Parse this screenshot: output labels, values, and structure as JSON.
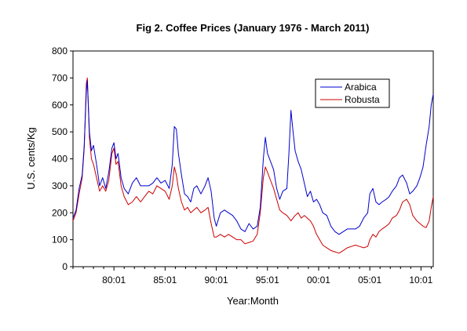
{
  "chart_data": {
    "type": "line",
    "title": "Fig 2. Coffee Prices (January 1976 - March 2011)",
    "xlabel": "Year:Month",
    "ylabel": "U.S. cents/Kg",
    "x_unit": "year",
    "xlim": [
      1976.0,
      2011.2
    ],
    "ylim": [
      0,
      800
    ],
    "yticks": [
      0,
      100,
      200,
      300,
      400,
      500,
      600,
      700,
      800
    ],
    "xticks": [
      {
        "value": 1980.0,
        "label": "80:01"
      },
      {
        "value": 1985.0,
        "label": "85:01"
      },
      {
        "value": 1990.0,
        "label": "90:01"
      },
      {
        "value": 1995.0,
        "label": "95:01"
      },
      {
        "value": 2000.0,
        "label": "00:01"
      },
      {
        "value": 2005.0,
        "label": "05:01"
      },
      {
        "value": 2010.0,
        "label": "10:01"
      }
    ],
    "grid": false,
    "legend_position": "upper-right",
    "series": [
      {
        "name": "Arabica",
        "color": "#0000cc",
        "points": [
          [
            1976.0,
            180
          ],
          [
            1976.3,
            210
          ],
          [
            1976.6,
            290
          ],
          [
            1976.9,
            340
          ],
          [
            1977.1,
            450
          ],
          [
            1977.3,
            650
          ],
          [
            1977.4,
            690
          ],
          [
            1977.6,
            500
          ],
          [
            1977.8,
            430
          ],
          [
            1978.0,
            450
          ],
          [
            1978.3,
            380
          ],
          [
            1978.6,
            300
          ],
          [
            1978.9,
            330
          ],
          [
            1979.2,
            290
          ],
          [
            1979.5,
            350
          ],
          [
            1979.8,
            440
          ],
          [
            1980.0,
            460
          ],
          [
            1980.2,
            400
          ],
          [
            1980.4,
            420
          ],
          [
            1980.7,
            330
          ],
          [
            1981.0,
            290
          ],
          [
            1981.4,
            270
          ],
          [
            1981.8,
            310
          ],
          [
            1982.2,
            330
          ],
          [
            1982.6,
            300
          ],
          [
            1983.0,
            300
          ],
          [
            1983.4,
            300
          ],
          [
            1983.8,
            310
          ],
          [
            1984.2,
            330
          ],
          [
            1984.6,
            310
          ],
          [
            1985.0,
            320
          ],
          [
            1985.4,
            290
          ],
          [
            1985.7,
            380
          ],
          [
            1985.9,
            520
          ],
          [
            1986.1,
            510
          ],
          [
            1986.3,
            420
          ],
          [
            1986.6,
            340
          ],
          [
            1986.9,
            270
          ],
          [
            1987.2,
            260
          ],
          [
            1987.5,
            240
          ],
          [
            1987.8,
            290
          ],
          [
            1988.1,
            300
          ],
          [
            1988.5,
            270
          ],
          [
            1988.9,
            300
          ],
          [
            1989.2,
            330
          ],
          [
            1989.5,
            280
          ],
          [
            1989.8,
            180
          ],
          [
            1990.0,
            150
          ],
          [
            1990.4,
            200
          ],
          [
            1990.8,
            210
          ],
          [
            1991.2,
            200
          ],
          [
            1991.6,
            190
          ],
          [
            1992.0,
            170
          ],
          [
            1992.4,
            140
          ],
          [
            1992.8,
            130
          ],
          [
            1993.2,
            160
          ],
          [
            1993.6,
            140
          ],
          [
            1994.0,
            150
          ],
          [
            1994.3,
            220
          ],
          [
            1994.6,
            400
          ],
          [
            1994.8,
            480
          ],
          [
            1995.0,
            420
          ],
          [
            1995.3,
            390
          ],
          [
            1995.6,
            360
          ],
          [
            1995.9,
            290
          ],
          [
            1996.2,
            250
          ],
          [
            1996.5,
            280
          ],
          [
            1996.9,
            290
          ],
          [
            1997.1,
            420
          ],
          [
            1997.3,
            580
          ],
          [
            1997.5,
            500
          ],
          [
            1997.7,
            430
          ],
          [
            1998.0,
            390
          ],
          [
            1998.3,
            360
          ],
          [
            1998.6,
            310
          ],
          [
            1998.9,
            260
          ],
          [
            1999.2,
            280
          ],
          [
            1999.5,
            240
          ],
          [
            1999.8,
            250
          ],
          [
            2000.1,
            230
          ],
          [
            2000.4,
            200
          ],
          [
            2000.8,
            190
          ],
          [
            2001.2,
            150
          ],
          [
            2001.6,
            130
          ],
          [
            2002.0,
            120
          ],
          [
            2002.4,
            130
          ],
          [
            2002.8,
            140
          ],
          [
            2003.2,
            140
          ],
          [
            2003.6,
            140
          ],
          [
            2004.0,
            150
          ],
          [
            2004.4,
            180
          ],
          [
            2004.8,
            200
          ],
          [
            2005.0,
            270
          ],
          [
            2005.3,
            290
          ],
          [
            2005.6,
            240
          ],
          [
            2005.9,
            230
          ],
          [
            2006.2,
            240
          ],
          [
            2006.6,
            250
          ],
          [
            2006.9,
            260
          ],
          [
            2007.2,
            280
          ],
          [
            2007.6,
            300
          ],
          [
            2007.9,
            330
          ],
          [
            2008.2,
            340
          ],
          [
            2008.6,
            310
          ],
          [
            2008.9,
            270
          ],
          [
            2009.2,
            280
          ],
          [
            2009.6,
            300
          ],
          [
            2009.9,
            330
          ],
          [
            2010.2,
            370
          ],
          [
            2010.5,
            450
          ],
          [
            2010.8,
            520
          ],
          [
            2011.0,
            600
          ],
          [
            2011.2,
            640
          ]
        ]
      },
      {
        "name": "Robusta",
        "color": "#cc0000",
        "points": [
          [
            1976.0,
            170
          ],
          [
            1976.3,
            200
          ],
          [
            1976.6,
            270
          ],
          [
            1976.9,
            330
          ],
          [
            1977.1,
            440
          ],
          [
            1977.3,
            680
          ],
          [
            1977.4,
            700
          ],
          [
            1977.6,
            480
          ],
          [
            1977.8,
            400
          ],
          [
            1978.0,
            380
          ],
          [
            1978.3,
            330
          ],
          [
            1978.6,
            280
          ],
          [
            1978.9,
            300
          ],
          [
            1979.2,
            280
          ],
          [
            1979.5,
            320
          ],
          [
            1979.8,
            420
          ],
          [
            1980.0,
            440
          ],
          [
            1980.2,
            380
          ],
          [
            1980.4,
            390
          ],
          [
            1980.7,
            300
          ],
          [
            1981.0,
            260
          ],
          [
            1981.4,
            230
          ],
          [
            1981.8,
            240
          ],
          [
            1982.2,
            260
          ],
          [
            1982.6,
            240
          ],
          [
            1983.0,
            260
          ],
          [
            1983.4,
            280
          ],
          [
            1983.8,
            270
          ],
          [
            1984.2,
            300
          ],
          [
            1984.6,
            290
          ],
          [
            1985.0,
            280
          ],
          [
            1985.4,
            250
          ],
          [
            1985.7,
            300
          ],
          [
            1985.9,
            370
          ],
          [
            1986.1,
            340
          ],
          [
            1986.3,
            290
          ],
          [
            1986.6,
            240
          ],
          [
            1986.9,
            210
          ],
          [
            1987.2,
            220
          ],
          [
            1987.5,
            200
          ],
          [
            1987.8,
            210
          ],
          [
            1988.1,
            220
          ],
          [
            1988.5,
            200
          ],
          [
            1988.9,
            210
          ],
          [
            1989.2,
            220
          ],
          [
            1989.5,
            160
          ],
          [
            1989.8,
            110
          ],
          [
            1990.0,
            110
          ],
          [
            1990.4,
            120
          ],
          [
            1990.8,
            110
          ],
          [
            1991.2,
            120
          ],
          [
            1991.6,
            110
          ],
          [
            1992.0,
            100
          ],
          [
            1992.4,
            100
          ],
          [
            1992.8,
            85
          ],
          [
            1993.2,
            90
          ],
          [
            1993.6,
            95
          ],
          [
            1994.0,
            120
          ],
          [
            1994.3,
            200
          ],
          [
            1994.6,
            330
          ],
          [
            1994.8,
            370
          ],
          [
            1995.0,
            350
          ],
          [
            1995.3,
            320
          ],
          [
            1995.6,
            290
          ],
          [
            1995.9,
            250
          ],
          [
            1996.2,
            210
          ],
          [
            1996.5,
            200
          ],
          [
            1996.9,
            190
          ],
          [
            1997.1,
            180
          ],
          [
            1997.3,
            170
          ],
          [
            1997.5,
            180
          ],
          [
            1997.7,
            190
          ],
          [
            1998.0,
            200
          ],
          [
            1998.3,
            180
          ],
          [
            1998.6,
            190
          ],
          [
            1998.9,
            180
          ],
          [
            1999.2,
            170
          ],
          [
            1999.5,
            150
          ],
          [
            1999.8,
            120
          ],
          [
            2000.1,
            100
          ],
          [
            2000.4,
            80
          ],
          [
            2000.8,
            70
          ],
          [
            2001.2,
            60
          ],
          [
            2001.6,
            55
          ],
          [
            2002.0,
            50
          ],
          [
            2002.4,
            60
          ],
          [
            2002.8,
            70
          ],
          [
            2003.2,
            75
          ],
          [
            2003.6,
            80
          ],
          [
            2004.0,
            75
          ],
          [
            2004.4,
            70
          ],
          [
            2004.8,
            75
          ],
          [
            2005.0,
            100
          ],
          [
            2005.3,
            120
          ],
          [
            2005.6,
            110
          ],
          [
            2005.9,
            130
          ],
          [
            2006.2,
            140
          ],
          [
            2006.6,
            150
          ],
          [
            2006.9,
            160
          ],
          [
            2007.2,
            180
          ],
          [
            2007.6,
            190
          ],
          [
            2007.9,
            210
          ],
          [
            2008.2,
            240
          ],
          [
            2008.6,
            250
          ],
          [
            2008.9,
            230
          ],
          [
            2009.2,
            190
          ],
          [
            2009.6,
            170
          ],
          [
            2009.9,
            160
          ],
          [
            2010.2,
            150
          ],
          [
            2010.5,
            145
          ],
          [
            2010.8,
            170
          ],
          [
            2011.0,
            220
          ],
          [
            2011.2,
            260
          ]
        ]
      }
    ]
  }
}
